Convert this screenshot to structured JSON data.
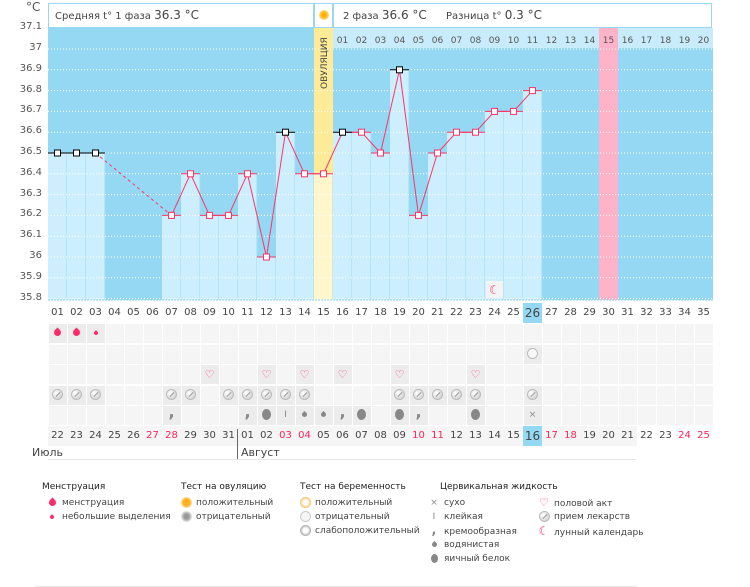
{
  "header": {
    "unit": "°C",
    "phase1_label": "Средняя t° 1 фаза",
    "phase1_value": "36.3 °C",
    "phase2_label": "2 фаза",
    "phase2_value": "36.6 °C",
    "diff_label": "Разница t°",
    "diff_value": "0.3 °C",
    "ovulation_label": "ОВУЛЯЦИЯ",
    "ovulation_icon": "sun-icon"
  },
  "chart_data": {
    "type": "line",
    "ylabel": "°C",
    "ylim": [
      35.8,
      37.1
    ],
    "yticks": [
      "37.1",
      "37",
      "36.9",
      "36.8",
      "36.7",
      "36.6",
      "36.5",
      "36.4",
      "36.3",
      "36.2",
      "36.1",
      "36",
      "35.9",
      "35.8"
    ],
    "grid": true,
    "cycle_days": [
      "01",
      "02",
      "03",
      "04",
      "05",
      "06",
      "07",
      "08",
      "09",
      "10",
      "11",
      "12",
      "13",
      "14",
      "15",
      "16",
      "17",
      "18",
      "19",
      "20",
      "21",
      "22",
      "23",
      "24",
      "25",
      "26",
      "27",
      "28",
      "29",
      "30",
      "31",
      "32",
      "33",
      "34",
      "35"
    ],
    "phase2_days": [
      "01",
      "02",
      "03",
      "04",
      "05",
      "06",
      "07",
      "08",
      "09",
      "10",
      "11",
      "12",
      "13",
      "14",
      "15",
      "16",
      "17",
      "18",
      "19",
      "20"
    ],
    "temperatures": [
      36.5,
      36.5,
      36.5,
      null,
      null,
      null,
      36.2,
      36.4,
      36.2,
      36.2,
      36.4,
      36.0,
      36.6,
      36.4,
      36.4,
      36.6,
      36.6,
      36.5,
      36.9,
      36.2,
      36.5,
      36.6,
      36.6,
      36.7,
      36.7,
      36.8,
      null,
      null,
      null,
      null,
      null,
      null,
      null,
      null,
      null
    ],
    "highlighted_points_black": [
      1,
      2,
      3,
      13,
      16,
      19
    ],
    "ovulation_day": 15,
    "expected_period_day": 30,
    "current_day": 26,
    "moon_day": 24,
    "colors": {
      "background": "#94d8f3",
      "bar": "#cdeefc",
      "line": "#ff3366",
      "ovulation": "#fdeb98",
      "expected_period": "#ffb3c8"
    }
  },
  "calendar": {
    "dates": [
      "22",
      "23",
      "24",
      "25",
      "26",
      "27",
      "28",
      "29",
      "30",
      "31",
      "01",
      "02",
      "03",
      "04",
      "05",
      "06",
      "07",
      "08",
      "09",
      "10",
      "11",
      "12",
      "13",
      "14",
      "15",
      "16",
      "17",
      "18",
      "19",
      "20",
      "21",
      "22",
      "23",
      "24",
      "25"
    ],
    "weekend_indices": [
      5,
      6,
      12,
      13,
      19,
      20,
      26,
      27,
      33,
      34
    ],
    "months": [
      "Июль",
      "Август"
    ],
    "menstruation": {
      "1": "heavy",
      "2": "heavy",
      "3": "light"
    },
    "pregnancy_test": {
      "26": "negative"
    },
    "sex": [
      9,
      12,
      14,
      16,
      19,
      23
    ],
    "medicine": [
      1,
      2,
      3,
      7,
      8,
      10,
      11,
      12,
      13,
      14,
      19,
      20,
      21,
      22,
      23,
      26
    ],
    "cervical": {
      "7": "creamy",
      "11": "creamy",
      "12": "egg-white",
      "13": "sticky",
      "14": "watery",
      "15": "watery",
      "16": "creamy",
      "17": "egg-white",
      "19": "egg-white",
      "20": "creamy",
      "23": "egg-white",
      "26": "dry"
    }
  },
  "legend": {
    "menstruation": {
      "title": "Менструация",
      "items": [
        "менструация",
        "небольшие выделения"
      ]
    },
    "ovulation_test": {
      "title": "Тест на овуляцию",
      "items": [
        "положительный",
        "отрицательный"
      ]
    },
    "pregnancy_test": {
      "title": "Тест на беременность",
      "items": [
        "положительный",
        "отрицательный",
        "слабоположительный"
      ]
    },
    "cervical": {
      "title": "Цервикальная жидкость",
      "items": [
        "сухо",
        "клейкая",
        "кремообразная",
        "водянистая",
        "яичный белок"
      ]
    },
    "other": {
      "items": [
        "половой акт",
        "прием лекарств",
        "лунный календарь"
      ]
    }
  }
}
